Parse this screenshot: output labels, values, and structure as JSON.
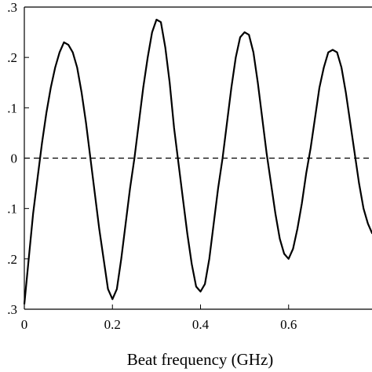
{
  "chart_data": {
    "type": "line",
    "title": "",
    "xlabel": "Beat frequency (GHz)",
    "ylabel": "",
    "xlim": [
      0,
      0.8
    ],
    "ylim": [
      -0.3,
      0.3
    ],
    "x_ticks": [
      0,
      0.2,
      0.4,
      0.6
    ],
    "x_tick_labels": [
      "0",
      "0.2",
      "0.4",
      "0.6"
    ],
    "y_ticks": [
      0.3,
      0.2,
      0.1,
      0,
      -0.1,
      -0.2,
      -0.3
    ],
    "y_tick_labels": [
      ".3",
      ".2",
      ".1",
      "0",
      ".1",
      ".2",
      ".3"
    ],
    "grid": false,
    "reference_line": {
      "y": 0,
      "style": "dashed"
    },
    "series": [
      {
        "color": "#000000",
        "x": [
          0.0,
          0.01,
          0.02,
          0.03,
          0.04,
          0.05,
          0.06,
          0.07,
          0.08,
          0.09,
          0.1,
          0.11,
          0.12,
          0.13,
          0.14,
          0.15,
          0.16,
          0.17,
          0.18,
          0.19,
          0.2,
          0.21,
          0.22,
          0.23,
          0.24,
          0.25,
          0.26,
          0.27,
          0.28,
          0.29,
          0.3,
          0.31,
          0.32,
          0.33,
          0.34,
          0.35,
          0.36,
          0.37,
          0.38,
          0.39,
          0.4,
          0.41,
          0.42,
          0.43,
          0.44,
          0.45,
          0.46,
          0.47,
          0.48,
          0.49,
          0.5,
          0.51,
          0.52,
          0.53,
          0.54,
          0.55,
          0.56,
          0.57,
          0.58,
          0.59,
          0.6,
          0.61,
          0.62,
          0.63,
          0.64,
          0.65,
          0.66,
          0.67,
          0.68,
          0.69,
          0.7,
          0.71,
          0.72,
          0.73,
          0.74,
          0.75,
          0.76,
          0.77,
          0.78,
          0.79
        ],
        "y": [
          -0.29,
          -0.2,
          -0.11,
          -0.04,
          0.03,
          0.09,
          0.14,
          0.18,
          0.21,
          0.23,
          0.225,
          0.21,
          0.18,
          0.13,
          0.07,
          0.0,
          -0.07,
          -0.14,
          -0.2,
          -0.26,
          -0.28,
          -0.26,
          -0.2,
          -0.13,
          -0.06,
          0.0,
          0.07,
          0.14,
          0.2,
          0.25,
          0.275,
          0.27,
          0.22,
          0.15,
          0.06,
          -0.01,
          -0.08,
          -0.15,
          -0.21,
          -0.255,
          -0.265,
          -0.25,
          -0.2,
          -0.13,
          -0.06,
          0.0,
          0.07,
          0.14,
          0.2,
          0.24,
          0.25,
          0.245,
          0.21,
          0.15,
          0.08,
          0.01,
          -0.05,
          -0.11,
          -0.16,
          -0.19,
          -0.2,
          -0.18,
          -0.14,
          -0.09,
          -0.03,
          0.02,
          0.08,
          0.14,
          0.18,
          0.21,
          0.215,
          0.21,
          0.18,
          0.13,
          0.07,
          0.01,
          -0.05,
          -0.1,
          -0.13,
          -0.15
        ]
      }
    ]
  }
}
